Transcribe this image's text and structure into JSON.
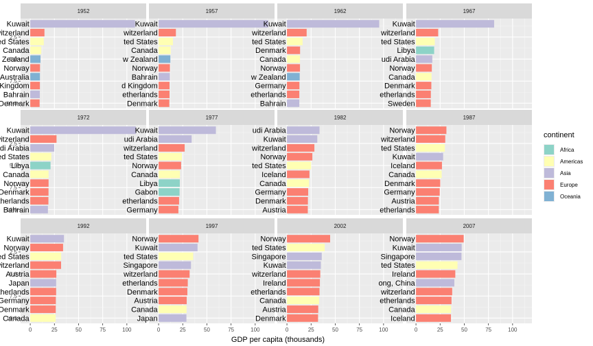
{
  "chart_data": {
    "type": "bar",
    "orientation": "horizontal",
    "xlabel": "GDP per capita (thousands)",
    "xlim": [
      -10,
      120
    ],
    "x_ticks": [
      0,
      25,
      50,
      75,
      100
    ],
    "ylim": [
      0.4,
      10.6
    ],
    "y_ticks": [
      2.5,
      5.0,
      7.5,
      10.0
    ],
    "y_tick_labels": [
      "2.5",
      "5.0",
      "7.5",
      "10.0"
    ],
    "grid": true,
    "facet_layout": "3 rows x 4 columns",
    "legend": {
      "title": "continent",
      "position": "right",
      "entries": [
        {
          "name": "Africa",
          "color": "#8dd3c7"
        },
        {
          "name": "Americas",
          "color": "#ffffb3"
        },
        {
          "name": "Asia",
          "color": "#bebada"
        },
        {
          "name": "Europe",
          "color": "#fb8072"
        },
        {
          "name": "Oceania",
          "color": "#80b1d3"
        }
      ]
    },
    "facets": [
      {
        "year": "1952",
        "bars": [
          {
            "label": "Kuwait",
            "value": 108.4,
            "continent": "Asia"
          },
          {
            "label": "witzerland",
            "value": 14.7,
            "continent": "Europe"
          },
          {
            "label": "ted States",
            "value": 14.0,
            "continent": "Americas"
          },
          {
            "label": "Canada",
            "value": 11.4,
            "continent": "Americas"
          },
          {
            "label": "w Zealand",
            "value": 10.6,
            "continent": "Oceania"
          },
          {
            "label": "Norway",
            "value": 10.1,
            "continent": "Europe"
          },
          {
            "label": "Australia",
            "value": 10.0,
            "continent": "Oceania"
          },
          {
            "label": "d Kingdom",
            "value": 9.98,
            "continent": "Europe"
          },
          {
            "label": "Bahrain",
            "value": 9.87,
            "continent": "Asia"
          },
          {
            "label": "Denmark",
            "value": 9.69,
            "continent": "Europe"
          }
        ]
      },
      {
        "year": "1957",
        "bars": [
          {
            "label": "Kuwait",
            "value": 113.5,
            "continent": "Asia"
          },
          {
            "label": "witzerland",
            "value": 17.9,
            "continent": "Europe"
          },
          {
            "label": "ted States",
            "value": 14.8,
            "continent": "Americas"
          },
          {
            "label": "Canada",
            "value": 12.5,
            "continent": "Americas"
          },
          {
            "label": "w Zealand",
            "value": 12.2,
            "continent": "Oceania"
          },
          {
            "label": "Norway",
            "value": 11.7,
            "continent": "Europe"
          },
          {
            "label": "Bahrain",
            "value": 11.6,
            "continent": "Asia"
          },
          {
            "label": "d Kingdom",
            "value": 11.3,
            "continent": "Europe"
          },
          {
            "label": "etherlands",
            "value": 11.3,
            "continent": "Europe"
          },
          {
            "label": "Denmark",
            "value": 11.1,
            "continent": "Europe"
          }
        ]
      },
      {
        "year": "1962",
        "bars": [
          {
            "label": "Kuwait",
            "value": 95.5,
            "continent": "Asia"
          },
          {
            "label": "witzerland",
            "value": 20.4,
            "continent": "Europe"
          },
          {
            "label": "ted States",
            "value": 16.2,
            "continent": "Americas"
          },
          {
            "label": "Denmark",
            "value": 13.6,
            "continent": "Europe"
          },
          {
            "label": "Canada",
            "value": 13.5,
            "continent": "Americas"
          },
          {
            "label": "Norway",
            "value": 13.5,
            "continent": "Europe"
          },
          {
            "label": "w Zealand",
            "value": 13.2,
            "continent": "Oceania"
          },
          {
            "label": "Germany",
            "value": 12.9,
            "continent": "Europe"
          },
          {
            "label": "etherlands",
            "value": 12.8,
            "continent": "Europe"
          },
          {
            "label": "Bahrain",
            "value": 12.8,
            "continent": "Asia"
          }
        ]
      },
      {
        "year": "1967",
        "bars": [
          {
            "label": "Kuwait",
            "value": 80.9,
            "continent": "Asia"
          },
          {
            "label": "witzerland",
            "value": 22.97,
            "continent": "Europe"
          },
          {
            "label": "ted States",
            "value": 19.5,
            "continent": "Americas"
          },
          {
            "label": "Libya",
            "value": 18.8,
            "continent": "Africa"
          },
          {
            "label": "udi Arabia",
            "value": 16.9,
            "continent": "Asia"
          },
          {
            "label": "Norway",
            "value": 16.4,
            "continent": "Europe"
          },
          {
            "label": "Canada",
            "value": 16.1,
            "continent": "Americas"
          },
          {
            "label": "Denmark",
            "value": 15.9,
            "continent": "Europe"
          },
          {
            "label": "etherlands",
            "value": 15.4,
            "continent": "Europe"
          },
          {
            "label": "Sweden",
            "value": 15.3,
            "continent": "Europe"
          }
        ]
      },
      {
        "year": "1972",
        "bars": [
          {
            "label": "Kuwait",
            "value": 109.3,
            "continent": "Asia"
          },
          {
            "label": "witzerland",
            "value": 27.2,
            "continent": "Europe"
          },
          {
            "label": "udi Arabia",
            "value": 24.8,
            "continent": "Asia"
          },
          {
            "label": "ted States",
            "value": 21.8,
            "continent": "Americas"
          },
          {
            "label": "Libya",
            "value": 21.0,
            "continent": "Africa"
          },
          {
            "label": "Canada",
            "value": 18.97,
            "continent": "Americas"
          },
          {
            "label": "Norway",
            "value": 18.97,
            "continent": "Europe"
          },
          {
            "label": "Denmark",
            "value": 18.9,
            "continent": "Europe"
          },
          {
            "label": "etherlands",
            "value": 18.8,
            "continent": "Europe"
          },
          {
            "label": "Bahrain",
            "value": 18.3,
            "continent": "Asia"
          }
        ]
      },
      {
        "year": "1977",
        "bars": [
          {
            "label": "Kuwait",
            "value": 59.3,
            "continent": "Asia"
          },
          {
            "label": "udi Arabia",
            "value": 34.2,
            "continent": "Asia"
          },
          {
            "label": "witzerland",
            "value": 26.98,
            "continent": "Europe"
          },
          {
            "label": "ted States",
            "value": 24.1,
            "continent": "Americas"
          },
          {
            "label": "Norway",
            "value": 23.3,
            "continent": "Europe"
          },
          {
            "label": "Canada",
            "value": 22.1,
            "continent": "Americas"
          },
          {
            "label": "Libya",
            "value": 21.95,
            "continent": "Africa"
          },
          {
            "label": "Gabon",
            "value": 21.7,
            "continent": "Africa"
          },
          {
            "label": "etherlands",
            "value": 21.2,
            "continent": "Europe"
          },
          {
            "label": "Germany",
            "value": 20.5,
            "continent": "Europe"
          }
        ]
      },
      {
        "year": "1982",
        "bars": [
          {
            "label": "udi Arabia",
            "value": 33.7,
            "continent": "Asia"
          },
          {
            "label": "Kuwait",
            "value": 31.4,
            "continent": "Asia"
          },
          {
            "label": "witzerland",
            "value": 28.4,
            "continent": "Europe"
          },
          {
            "label": "Norway",
            "value": 26.3,
            "continent": "Europe"
          },
          {
            "label": "ted States",
            "value": 25.0,
            "continent": "Americas"
          },
          {
            "label": "Iceland",
            "value": 23.3,
            "continent": "Europe"
          },
          {
            "label": "Canada",
            "value": 22.9,
            "continent": "Americas"
          },
          {
            "label": "Germany",
            "value": 22.0,
            "continent": "Europe"
          },
          {
            "label": "Denmark",
            "value": 21.7,
            "continent": "Europe"
          },
          {
            "label": "Austria",
            "value": 21.6,
            "continent": "Europe"
          }
        ]
      },
      {
        "year": "1987",
        "bars": [
          {
            "label": "Norway",
            "value": 31.5,
            "continent": "Europe"
          },
          {
            "label": "witzerland",
            "value": 30.3,
            "continent": "Europe"
          },
          {
            "label": "ted States",
            "value": 29.9,
            "continent": "Americas"
          },
          {
            "label": "Kuwait",
            "value": 28.1,
            "continent": "Asia"
          },
          {
            "label": "Iceland",
            "value": 26.9,
            "continent": "Europe"
          },
          {
            "label": "Canada",
            "value": 26.6,
            "continent": "Americas"
          },
          {
            "label": "Denmark",
            "value": 25.1,
            "continent": "Europe"
          },
          {
            "label": "Germany",
            "value": 24.6,
            "continent": "Europe"
          },
          {
            "label": "Austria",
            "value": 23.7,
            "continent": "Europe"
          },
          {
            "label": "etherlands",
            "value": 23.65,
            "continent": "Europe"
          }
        ]
      },
      {
        "year": "1992",
        "bars": [
          {
            "label": "Kuwait",
            "value": 34.9,
            "continent": "Asia"
          },
          {
            "label": "Norway",
            "value": 33.97,
            "continent": "Europe"
          },
          {
            "label": "ted States",
            "value": 32.0,
            "continent": "Americas"
          },
          {
            "label": "witzerland",
            "value": 31.9,
            "continent": "Europe"
          },
          {
            "label": "Austria",
            "value": 27.0,
            "continent": "Europe"
          },
          {
            "label": "Japan",
            "value": 26.8,
            "continent": "Asia"
          },
          {
            "label": "etherlands",
            "value": 26.8,
            "continent": "Europe"
          },
          {
            "label": "Germany",
            "value": 26.5,
            "continent": "Europe"
          },
          {
            "label": "Denmark",
            "value": 26.4,
            "continent": "Europe"
          },
          {
            "label": "Canada",
            "value": 26.3,
            "continent": "Americas"
          }
        ]
      },
      {
        "year": "1997",
        "bars": [
          {
            "label": "Norway",
            "value": 41.3,
            "continent": "Europe"
          },
          {
            "label": "Kuwait",
            "value": 40.3,
            "continent": "Asia"
          },
          {
            "label": "ted States",
            "value": 35.8,
            "continent": "Americas"
          },
          {
            "label": "Singapore",
            "value": 33.5,
            "continent": "Asia"
          },
          {
            "label": "witzerland",
            "value": 32.1,
            "continent": "Europe"
          },
          {
            "label": "etherlands",
            "value": 30.2,
            "continent": "Europe"
          },
          {
            "label": "Denmark",
            "value": 29.8,
            "continent": "Europe"
          },
          {
            "label": "Austria",
            "value": 29.1,
            "continent": "Europe"
          },
          {
            "label": "Canada",
            "value": 28.95,
            "continent": "Americas"
          },
          {
            "label": "Japan",
            "value": 28.8,
            "continent": "Asia"
          }
        ]
      },
      {
        "year": "2002",
        "bars": [
          {
            "label": "Norway",
            "value": 44.7,
            "continent": "Europe"
          },
          {
            "label": "ted States",
            "value": 39.1,
            "continent": "Americas"
          },
          {
            "label": "Singapore",
            "value": 36.0,
            "continent": "Asia"
          },
          {
            "label": "Kuwait",
            "value": 35.1,
            "continent": "Asia"
          },
          {
            "label": "witzerland",
            "value": 34.5,
            "continent": "Europe"
          },
          {
            "label": "Ireland",
            "value": 34.1,
            "continent": "Europe"
          },
          {
            "label": "etherlands",
            "value": 33.7,
            "continent": "Europe"
          },
          {
            "label": "Canada",
            "value": 33.3,
            "continent": "Americas"
          },
          {
            "label": "Austria",
            "value": 32.4,
            "continent": "Europe"
          },
          {
            "label": "Denmark",
            "value": 32.2,
            "continent": "Europe"
          }
        ]
      },
      {
        "year": "2007",
        "bars": [
          {
            "label": "Norway",
            "value": 49.4,
            "continent": "Europe"
          },
          {
            "label": "Kuwait",
            "value": 47.3,
            "continent": "Asia"
          },
          {
            "label": "Singapore",
            "value": 47.1,
            "continent": "Asia"
          },
          {
            "label": "ted States",
            "value": 43.0,
            "continent": "Americas"
          },
          {
            "label": "Ireland",
            "value": 40.7,
            "continent": "Europe"
          },
          {
            "label": "ong, China",
            "value": 39.7,
            "continent": "Asia"
          },
          {
            "label": "witzerland",
            "value": 37.5,
            "continent": "Europe"
          },
          {
            "label": "etherlands",
            "value": 36.8,
            "continent": "Europe"
          },
          {
            "label": "Canada",
            "value": 36.3,
            "continent": "Americas"
          },
          {
            "label": "Iceland",
            "value": 36.2,
            "continent": "Europe"
          }
        ]
      }
    ]
  }
}
